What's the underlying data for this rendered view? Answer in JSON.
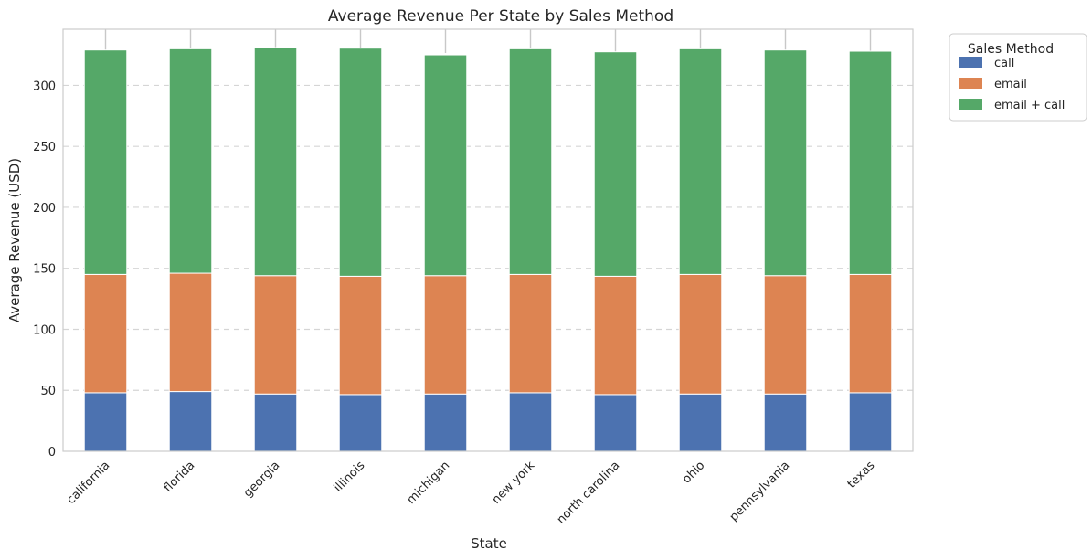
{
  "chart_data": {
    "type": "bar",
    "stacked": true,
    "title": "Average Revenue Per State by Sales Method",
    "xlabel": "State",
    "ylabel": "Average Revenue (USD)",
    "categories": [
      "california",
      "florida",
      "georgia",
      "illinois",
      "michigan",
      "new york",
      "north carolina",
      "ohio",
      "pennsylvania",
      "texas"
    ],
    "series": [
      {
        "name": "call",
        "color": "#4c72b0",
        "values": [
          48,
          49,
          47,
          46.5,
          47,
          48,
          46.5,
          47,
          47,
          48
        ]
      },
      {
        "name": "email",
        "color": "#dd8452",
        "values": [
          97,
          97,
          97,
          97,
          97,
          97,
          97,
          98,
          97,
          97
        ]
      },
      {
        "name": "email + call",
        "color": "#55a868",
        "values": [
          184,
          184,
          187,
          187,
          181,
          185,
          184,
          185,
          185,
          183
        ]
      }
    ],
    "ylim": [
      0,
      346
    ],
    "yticks": [
      0,
      50,
      100,
      150,
      200,
      250,
      300
    ],
    "grid": "y-dashed",
    "legend": {
      "title": "Sales Method",
      "position": "outside-right"
    }
  }
}
